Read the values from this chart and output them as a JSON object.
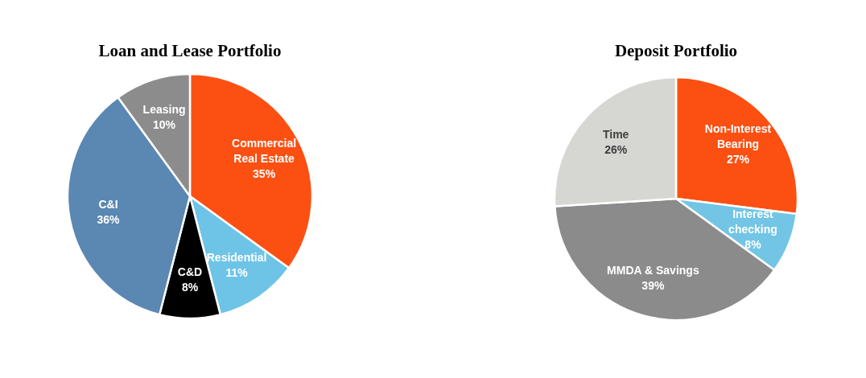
{
  "chart_data": [
    {
      "type": "pie",
      "title": "Loan and Lease Portfolio",
      "categories": [
        "Commercial Real Estate",
        "Residential",
        "C&D",
        "C&I",
        "Leasing"
      ],
      "values": [
        35,
        11,
        8,
        36,
        10
      ],
      "value_labels": [
        "35%",
        "11%",
        "8%",
        "36%",
        "10%"
      ],
      "colors": [
        "#fc5012",
        "#6ec4e6",
        "#000000",
        "#5b87b3",
        "#8c8c8c"
      ]
    },
    {
      "type": "pie",
      "title": "Deposit Portfolio",
      "categories": [
        "Non-Interest Bearing",
        "Interest checking",
        "MMDA & Savings",
        "Time"
      ],
      "values": [
        27,
        8,
        39,
        26
      ],
      "value_labels": [
        "27%",
        "8%",
        "39%",
        "26%"
      ],
      "colors": [
        "#fc5012",
        "#72c5e5",
        "#8b8b8c",
        "#d6d6d2"
      ]
    }
  ]
}
